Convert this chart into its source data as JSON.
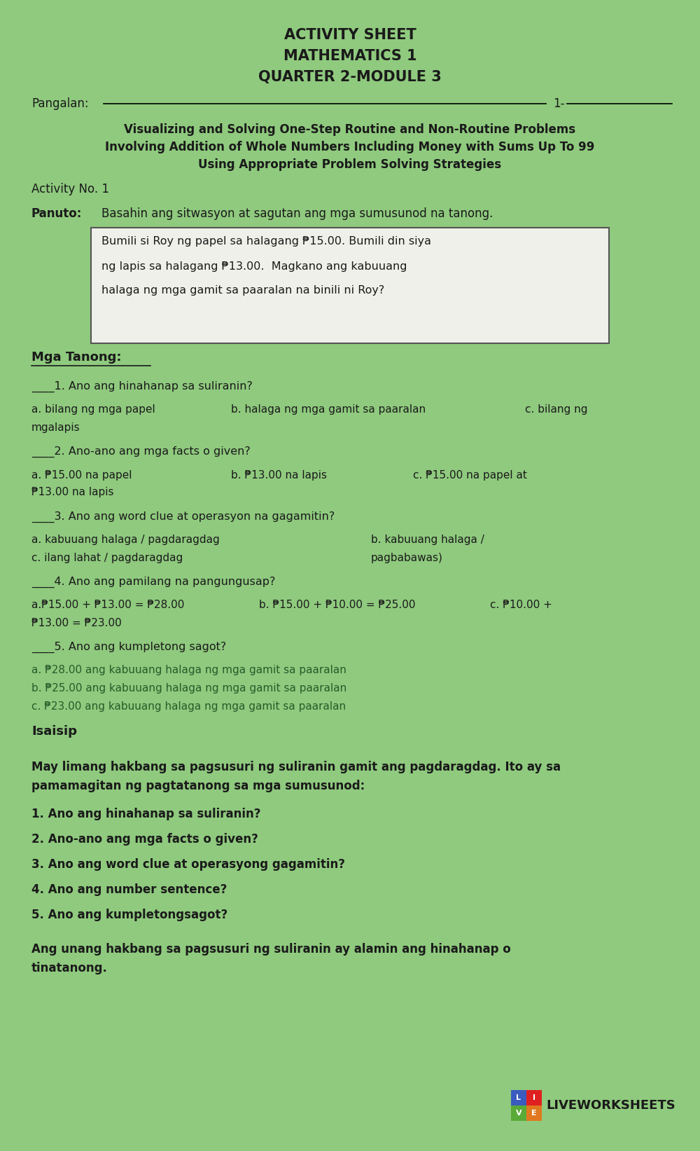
{
  "bg_color": "#8fca7e",
  "title1": "ACTIVITY SHEET",
  "title2": "MATHEMATICS 1",
  "title3": "QUARTER 2-MODULE 3",
  "pangalan_label": "Pangalan:",
  "subtitle1": "Visualizing and Solving One-Step Routine and Non-Routine Problems",
  "subtitle2": "Involving Addition of Whole Numbers Including Money with Sums Up To 99",
  "subtitle3": "Using Appropriate Problem Solving Strategies",
  "activity": "Activity No. 1",
  "panuto_bold": "Panuto:",
  "panuto_text": "Basahin ang sitwasyon at sagutan ang mga sumusunod na tanong.",
  "box_line1": "Bumili si Roy ng papel sa halagang ₱15.00. Bumili din siya",
  "box_line2": "ng lapis sa halagang ₱13.00.  Magkano ang kabuuang",
  "box_line3": "halaga ng mga gamit sa paaralan na binili ni Roy?",
  "mga_tanong": "Mga Tanong:",
  "q1": "____1. Ano ang hinahanap sa suliranin?",
  "q1a": "a. bilang ng mga papel",
  "q1b": "b. halaga ng mga gamit sa paaralan",
  "q1c": "c. bilang ng",
  "q1c2": "mgalapis",
  "q2": "____2. Ano-ano ang mga facts o given?",
  "q2a": "a. ₱15.00 na papel",
  "q2b": "b. ₱13.00 na lapis",
  "q2c": "c. ₱15.00 na papel at",
  "q2c2": "₱13.00 na lapis",
  "q3": "____3. Ano ang word clue at operasyon na gagamitin?",
  "q3a": "a. kabuuang halaga / pagdaragdag",
  "q3b": "b. kabuuang halaga /",
  "q3b2": "pagbabawas)",
  "q3c": "c. ilang lahat / pagdaragdag",
  "q4": "____4. Ano ang pamilang na pangungusap?",
  "q4a": "a.₱15.00 + ₱13.00 = ₱28.00",
  "q4b": "b. ₱15.00 + ₱10.00 = ₱25.00",
  "q4c": "c. ₱10.00 +",
  "q4c2": "₱13.00 = ₱23.00",
  "q5": "____5. Ano ang kumpletong sagot?",
  "q5a": "a. ₱28.00 ang kabuuang halaga ng mga gamit sa paaralan",
  "q5b": "b. ₱25.00 ang kabuuang halaga ng mga gamit sa paaralan",
  "q5c": "c. ₱23.00 ang kabuuang halaga ng mga gamit sa paaralan",
  "isaisip": "Isaisip",
  "isaisip_para1": "May limang hakbang sa pagsusuri ng suliranin gamit ang pagdaragdag. Ito ay sa",
  "isaisip_para2": "pamamagitan ng pagtatanong sa mga sumusunod:",
  "bold_item1": "1. Ano ang hinahanap sa suliranin?",
  "bold_item2": "2. Ano-ano ang mga facts o given?",
  "bold_item3": "3. Ano ang word clue at operasyong gagamitin?",
  "bold_item4": "4. Ano ang number sentence?",
  "bold_item5": "5. Ano ang kumpletongsagot?",
  "final1": "Ang unang hakbang sa pagsusuri ng suliranin ay alamin ang hinahanap o",
  "final2": "tinatanong.",
  "text_color": "#1a1a1a",
  "dark_text": "#2d2d2d"
}
